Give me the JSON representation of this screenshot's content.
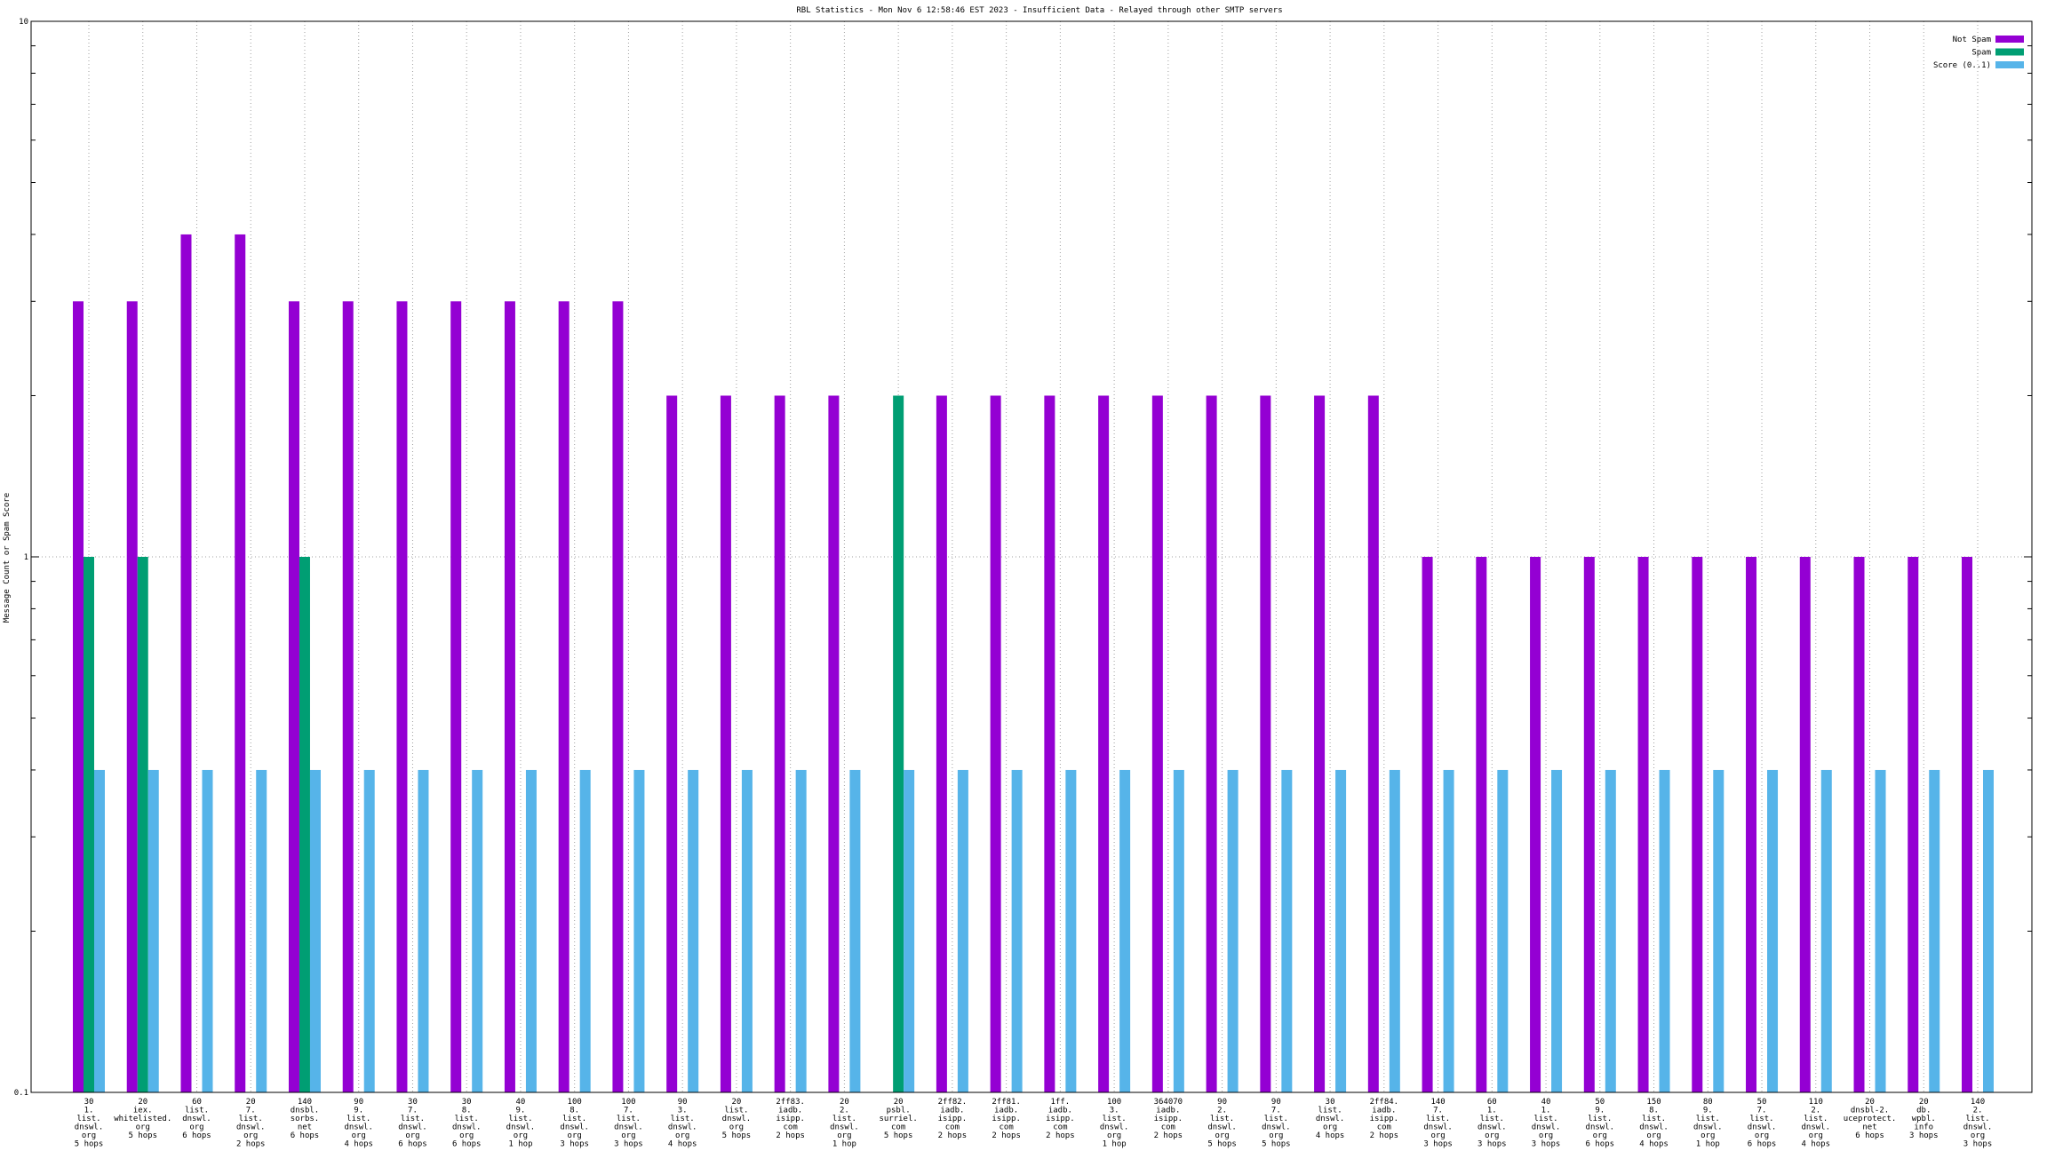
{
  "chart_data": {
    "type": "bar",
    "title": "RBL Statistics - Mon Nov  6 12:58:46 EST 2023 - Insufficient Data - Relayed through other SMTP servers",
    "y_label": "Message Count or Spam Score",
    "log_scale": true,
    "grid": true,
    "legend_position": "top-right",
    "ylim": [
      0.1,
      10
    ],
    "yticks": [
      0.1,
      1,
      10
    ],
    "yminorticks": [
      0.2,
      0.3,
      0.4,
      0.5,
      0.6,
      0.7,
      0.8,
      0.9,
      2,
      3,
      4,
      5,
      6,
      7,
      8,
      9
    ],
    "categories": [
      "30\n1.\nlist.\ndnswl.\norg\n5 hops",
      "20\niex.\nwhitelisted.\norg\n5 hops",
      "60\nlist.\ndnswl.\norg\n6 hops",
      "20\n7.\nlist.\ndnswl.\norg\n2 hops",
      "140\ndnsbl.\nsorbs.\nnet\n6 hops",
      "90\n9.\nlist.\ndnswl.\norg\n4 hops",
      "30\n7.\nlist.\ndnswl.\norg\n6 hops",
      "30\n8.\nlist.\ndnswl.\norg\n6 hops",
      "40\n9.\nlist.\ndnswl.\norg\n1 hop",
      "100\n8.\nlist.\ndnswl.\norg\n3 hops",
      "100\n7.\nlist.\ndnswl.\norg\n3 hops",
      "90\n3.\nlist.\ndnswl.\norg\n4 hops",
      "20\nlist.\ndnswl.\norg\n5 hops",
      "2ff83.\niadb.\nisipp.\ncom\n2 hops",
      "20\n2.\nlist.\ndnswl.\norg\n1 hop",
      "20\npsbl.\nsurriel.\ncom\n5 hops",
      "2ff82.\niadb.\nisipp.\ncom\n2 hops",
      "2ff81.\niadb.\nisipp.\ncom\n2 hops",
      "1ff.\niadb.\nisipp.\ncom\n2 hops",
      "100\n3.\nlist.\ndnswl.\norg\n1 hop",
      "364070\niadb.\nisipp.\ncom\n2 hops",
      "90\n2.\nlist.\ndnswl.\norg\n5 hops",
      "90\n7.\nlist.\ndnswl.\norg\n5 hops",
      "30\nlist.\ndnswl.\norg\n4 hops",
      "2ff84.\niadb.\nisipp.\ncom\n2 hops",
      "140\n7.\nlist.\ndnswl.\norg\n3 hops",
      "60\n1.\nlist.\ndnswl.\norg\n3 hops",
      "40\n1.\nlist.\ndnswl.\norg\n3 hops",
      "50\n9.\nlist.\ndnswl.\norg\n6 hops",
      "150\n8.\nlist.\ndnswl.\norg\n4 hops",
      "80\n9.\nlist.\ndnswl.\norg\n1 hop",
      "50\n7.\nlist.\ndnswl.\norg\n6 hops",
      "110\n2.\nlist.\ndnswl.\norg\n4 hops",
      "20\ndnsbl-2.\nuceprotect.\nnet\n6 hops",
      "20\ndb.\nwpbl.\ninfo\n3 hops",
      "140\n2.\nlist.\ndnswl.\norg\n3 hops"
    ],
    "series": [
      {
        "name": "Not Spam",
        "color": "#9400d3",
        "values": [
          3,
          3,
          4,
          4,
          3,
          3,
          3,
          3,
          3,
          3,
          3,
          2,
          2,
          2,
          2,
          null,
          2,
          2,
          2,
          2,
          2,
          2,
          2,
          2,
          2,
          1,
          1,
          1,
          1,
          1,
          1,
          1,
          1,
          1,
          1,
          1
        ]
      },
      {
        "name": "Spam",
        "color": "#009e73",
        "values": [
          1,
          1,
          null,
          null,
          1,
          null,
          null,
          null,
          null,
          null,
          null,
          null,
          null,
          null,
          null,
          2,
          null,
          null,
          null,
          null,
          null,
          null,
          null,
          null,
          null,
          null,
          null,
          null,
          null,
          null,
          null,
          null,
          null,
          null,
          null,
          null
        ]
      },
      {
        "name": "Score (0..1)",
        "color": "#56b4e9",
        "values": [
          0.4,
          0.4,
          0.4,
          0.4,
          0.4,
          0.4,
          0.4,
          0.4,
          0.4,
          0.4,
          0.4,
          0.4,
          0.4,
          0.4,
          0.4,
          0.4,
          0.4,
          0.4,
          0.4,
          0.4,
          0.4,
          0.4,
          0.4,
          0.4,
          0.4,
          0.4,
          0.4,
          0.4,
          0.4,
          0.4,
          0.4,
          0.4,
          0.4,
          0.4,
          0.4,
          0.4
        ]
      }
    ]
  }
}
